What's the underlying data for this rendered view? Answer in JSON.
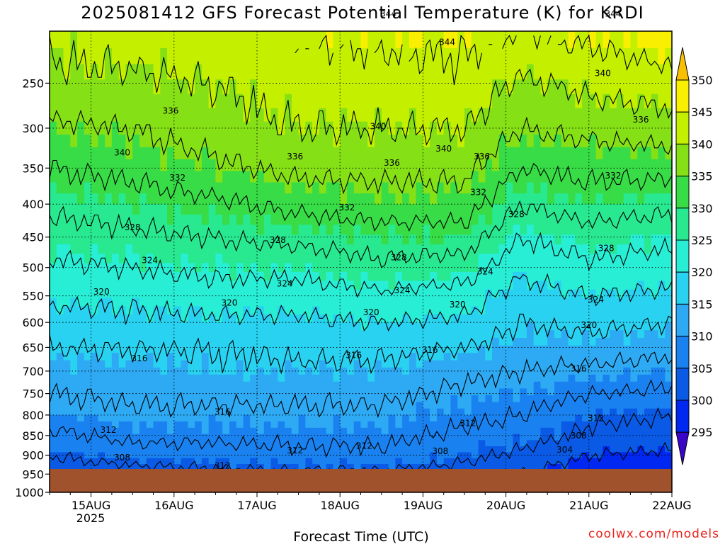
{
  "title": "2025081412 GFS Forecast Potential Temperature (K) for KRDI",
  "credit": "coolwx.com/models",
  "chart_data": {
    "type": "heatmap",
    "title": "2025081412 GFS Forecast Potential Temperature (K) for KRDI",
    "xlabel": "Forecast Time (UTC)",
    "ylabel": "",
    "y_ticks": [
      "250",
      "300",
      "350",
      "400",
      "450",
      "500",
      "550",
      "600",
      "650",
      "700",
      "750",
      "800",
      "850",
      "900",
      "950",
      "1000"
    ],
    "y_tick_values": [
      250,
      300,
      350,
      400,
      450,
      500,
      550,
      600,
      650,
      700,
      750,
      800,
      850,
      900,
      950,
      1000
    ],
    "x_ticks": [
      "15AUG",
      "16AUG",
      "17AUG",
      "18AUG",
      "19AUG",
      "20AUG",
      "21AUG",
      "22AUG"
    ],
    "x_tick_values": [
      24,
      48,
      72,
      96,
      120,
      144,
      168,
      192
    ],
    "x_sublabel": "2025",
    "xlim": [
      12,
      192
    ],
    "ylim_hPa": [
      200,
      1000
    ],
    "colorbar_values": [
      295,
      300,
      305,
      310,
      315,
      320,
      325,
      330,
      335,
      340,
      345,
      350
    ],
    "colorbar_labels": [
      "350",
      "345",
      "340",
      "335",
      "330",
      "325",
      "320",
      "315",
      "310",
      "305",
      "300",
      "295"
    ],
    "colors": [
      "#3a05c8",
      "#0028f0",
      "#0a5ae6",
      "#1a82f0",
      "#2eaaf4",
      "#28d2f0",
      "#28eed6",
      "#28e890",
      "#38dc46",
      "#86e016",
      "#c4f000",
      "#f8f000",
      "#f8c000"
    ],
    "ground_color": "#a0522d",
    "profile_pressures": [
      200,
      250,
      300,
      350,
      400,
      450,
      500,
      550,
      600,
      650,
      700,
      750,
      800,
      850,
      900,
      950
    ],
    "profiles": [
      {
        "t": 12,
        "theta": [
          341,
          339,
          335,
          332,
          329,
          326,
          323,
          321,
          318,
          316,
          314,
          312,
          310,
          307,
          304,
          301
        ]
      },
      {
        "t": 36,
        "theta": [
          342,
          339,
          336,
          333,
          330,
          327,
          324,
          321,
          319,
          316,
          314,
          313,
          311,
          309,
          306,
          302
        ]
      },
      {
        "t": 60,
        "theta": [
          343,
          340,
          338,
          335,
          331,
          328,
          325,
          322,
          319,
          316,
          315,
          313,
          311,
          309,
          306,
          303
        ]
      },
      {
        "t": 84,
        "theta": [
          344,
          342,
          340,
          337,
          333,
          329,
          325,
          322,
          319,
          317,
          315,
          313,
          311,
          309,
          307,
          303
        ]
      },
      {
        "t": 108,
        "theta": [
          345,
          342,
          340,
          337,
          334,
          330,
          327,
          323,
          320,
          317,
          315,
          313,
          311,
          309,
          307,
          303
        ]
      },
      {
        "t": 132,
        "theta": [
          345,
          343,
          340,
          337,
          334,
          330,
          326,
          322,
          319,
          316,
          313,
          311,
          309,
          307,
          305,
          302
        ]
      },
      {
        "t": 148,
        "theta": [
          344,
          339,
          336,
          332,
          328,
          324,
          321,
          318,
          316,
          314,
          312,
          310,
          308,
          306,
          303,
          300
        ]
      },
      {
        "t": 168,
        "theta": [
          345,
          341,
          337,
          333,
          330,
          326,
          323,
          320,
          317,
          314,
          311,
          308,
          305,
          303,
          300,
          297
        ]
      },
      {
        "t": 192,
        "theta": [
          347,
          342,
          338,
          333,
          329,
          325,
          322,
          319,
          316,
          313,
          310,
          307,
          304,
          302,
          299,
          296
        ]
      }
    ],
    "contour_levels": [
      300,
      304,
      308,
      312,
      316,
      320,
      324,
      328,
      332,
      336,
      340,
      344
    ],
    "contour_labels": [
      {
        "t": 33,
        "p": 330,
        "text": "340"
      },
      {
        "t": 110,
        "p": 185,
        "text": "344"
      },
      {
        "t": 127,
        "p": 210,
        "text": "344"
      },
      {
        "t": 175,
        "p": 185,
        "text": "344"
      },
      {
        "t": 107,
        "p": 298,
        "text": "340"
      },
      {
        "t": 126,
        "p": 325,
        "text": "340"
      },
      {
        "t": 172,
        "p": 240,
        "text": "340"
      },
      {
        "t": 47,
        "p": 280,
        "text": "336"
      },
      {
        "t": 83,
        "p": 335,
        "text": "336"
      },
      {
        "t": 111,
        "p": 343,
        "text": "336"
      },
      {
        "t": 137,
        "p": 335,
        "text": "336"
      },
      {
        "t": 183,
        "p": 290,
        "text": "336"
      },
      {
        "t": 49,
        "p": 363,
        "text": "332"
      },
      {
        "t": 98,
        "p": 405,
        "text": "332"
      },
      {
        "t": 136,
        "p": 383,
        "text": "332"
      },
      {
        "t": 175,
        "p": 360,
        "text": "332"
      },
      {
        "t": 36,
        "p": 435,
        "text": "328"
      },
      {
        "t": 78,
        "p": 455,
        "text": "328"
      },
      {
        "t": 113,
        "p": 483,
        "text": "328"
      },
      {
        "t": 147,
        "p": 415,
        "text": "328"
      },
      {
        "t": 173,
        "p": 468,
        "text": "328"
      },
      {
        "t": 41,
        "p": 488,
        "text": "324"
      },
      {
        "t": 80,
        "p": 528,
        "text": "324"
      },
      {
        "t": 114,
        "p": 540,
        "text": "324"
      },
      {
        "t": 138,
        "p": 507,
        "text": "324"
      },
      {
        "t": 170,
        "p": 557,
        "text": "324"
      },
      {
        "t": 27,
        "p": 543,
        "text": "320"
      },
      {
        "t": 64,
        "p": 563,
        "text": "320"
      },
      {
        "t": 105,
        "p": 581,
        "text": "320"
      },
      {
        "t": 130,
        "p": 566,
        "text": "320"
      },
      {
        "t": 168,
        "p": 605,
        "text": "320"
      },
      {
        "t": 38,
        "p": 673,
        "text": "316"
      },
      {
        "t": 100,
        "p": 666,
        "text": "316"
      },
      {
        "t": 122,
        "p": 655,
        "text": "316"
      },
      {
        "t": 165,
        "p": 695,
        "text": "316"
      },
      {
        "t": 62,
        "p": 793,
        "text": "316"
      },
      {
        "t": 29,
        "p": 836,
        "text": "312"
      },
      {
        "t": 83,
        "p": 888,
        "text": "312"
      },
      {
        "t": 103,
        "p": 876,
        "text": "312"
      },
      {
        "t": 62,
        "p": 928,
        "text": "312"
      },
      {
        "t": 133,
        "p": 820,
        "text": "312"
      },
      {
        "t": 170,
        "p": 808,
        "text": "312"
      },
      {
        "t": 33,
        "p": 906,
        "text": "308"
      },
      {
        "t": 125,
        "p": 890,
        "text": "308"
      },
      {
        "t": 165,
        "p": 850,
        "text": "308"
      },
      {
        "t": 161,
        "p": 886,
        "text": "304"
      }
    ]
  }
}
